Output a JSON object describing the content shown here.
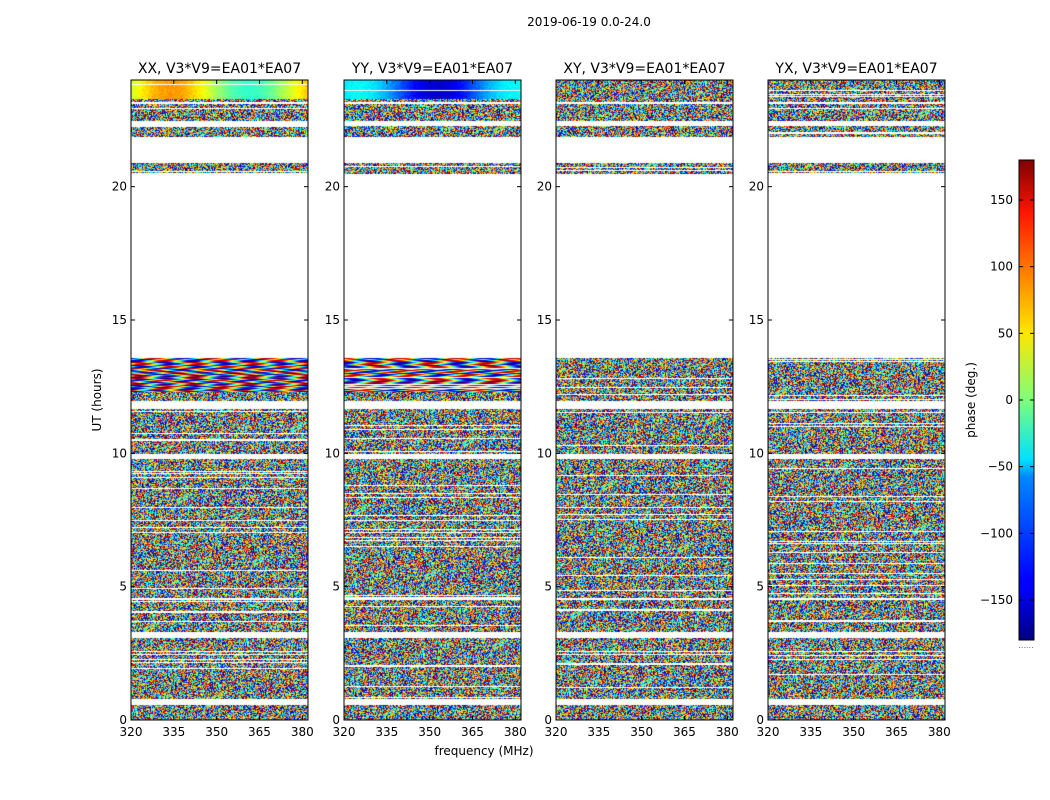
{
  "chart_data": {
    "type": "heatmap",
    "suptitle": "2019-06-19 0.0-24.0",
    "xlabel": "frequency (MHz)",
    "ylabel": "UT (hours)",
    "xlim": [
      320,
      382
    ],
    "ylim": [
      0,
      24
    ],
    "xticks": [
      "320",
      "335",
      "350",
      "365",
      "380"
    ],
    "yticks": [
      "0",
      "5",
      "10",
      "15",
      "20"
    ],
    "panels": [
      {
        "title": "XX, V3*V9=EA01*EA07",
        "pol": "XX"
      },
      {
        "title": "YY, V3*V9=EA01*EA07",
        "pol": "YY"
      },
      {
        "title": "XY, V3*V9=EA01*EA07",
        "pol": "XY"
      },
      {
        "title": "YX, V3*V9=EA01*EA07",
        "pol": "YX"
      }
    ],
    "data_time_ranges_hours": [
      [
        0.0,
        0.6
      ],
      [
        0.8,
        3.1
      ],
      [
        3.3,
        4.5
      ],
      [
        4.6,
        9.8
      ],
      [
        10.0,
        11.7
      ],
      [
        12.0,
        13.6
      ],
      [
        20.5,
        20.9
      ],
      [
        21.9,
        22.3
      ],
      [
        22.5,
        23.1
      ],
      [
        23.2,
        24.0
      ]
    ],
    "colorbar": {
      "label": "phase (deg.)",
      "range": [
        -180,
        180
      ],
      "ticks": [
        "150",
        "100",
        "50",
        "0",
        "−50",
        "−100",
        "−150"
      ],
      "tick_values": [
        150,
        100,
        50,
        0,
        -50,
        -100,
        -150
      ],
      "colormap": "jet",
      "footnote": "......"
    }
  }
}
